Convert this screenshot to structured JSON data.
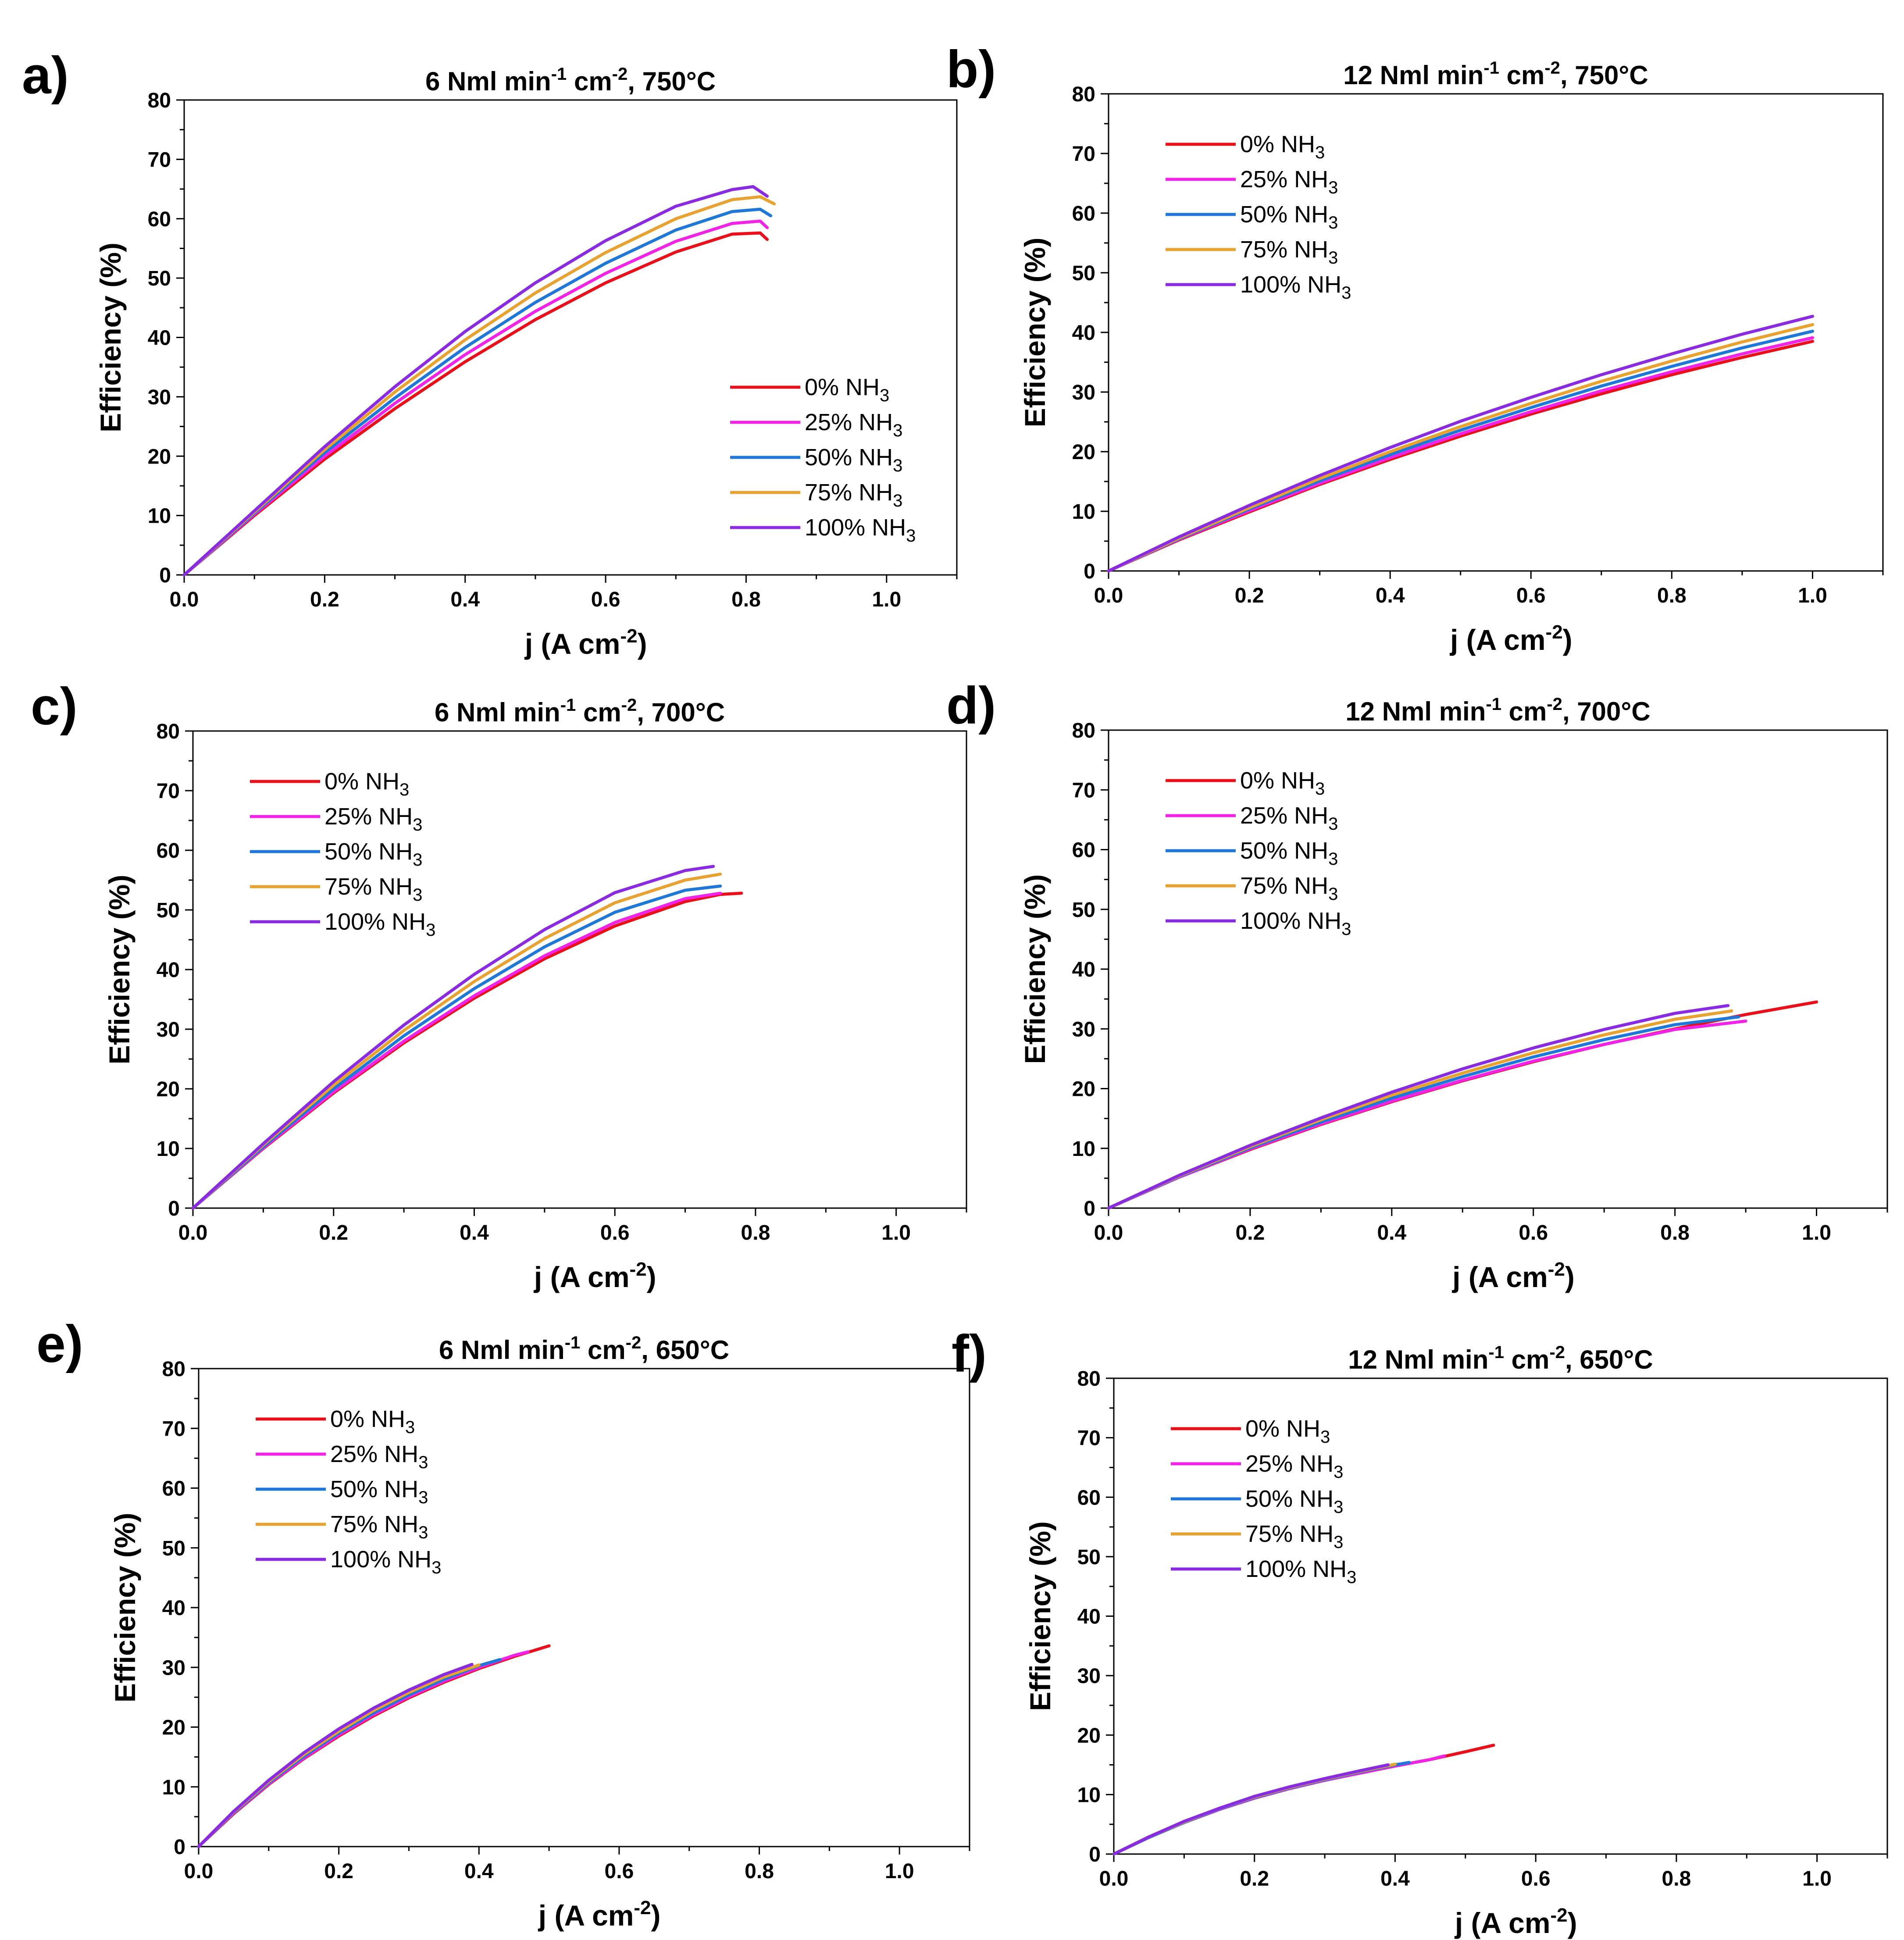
{
  "chart_data": [
    {
      "type": "line",
      "panel": "a)",
      "title": "6 Nml  min",
      "title_sup1": "-1",
      "title_mid": " cm",
      "title_sup2": "-2",
      "title_end": ", 750°C",
      "xlabel": "j (A cm",
      "xlabel_sup": "-2",
      "xlabel_end": ")",
      "ylabel": "Efficiency (%)",
      "xlim": [
        0,
        1.1
      ],
      "ylim": [
        0,
        80
      ],
      "xticks": [
        "0.0",
        "0.2",
        "0.4",
        "0.6",
        "0.8",
        "1.0"
      ],
      "yticks": [
        "0",
        "10",
        "20",
        "30",
        "40",
        "50",
        "60",
        "70",
        "80"
      ],
      "legend_position": "bottom-right",
      "series": [
        {
          "name": "0% NH",
          "sub": "3",
          "color": "#e8111b",
          "x": [
            0,
            0.1,
            0.2,
            0.3,
            0.4,
            0.5,
            0.6,
            0.7,
            0.78,
            0.82,
            0.83
          ],
          "y": [
            0,
            10.0,
            19.5,
            28.0,
            35.9,
            43.0,
            49.2,
            54.4,
            57.4,
            57.6,
            56.5
          ]
        },
        {
          "name": "25% NH",
          "sub": "3",
          "color": "#f023e6",
          "x": [
            0,
            0.1,
            0.2,
            0.3,
            0.4,
            0.5,
            0.6,
            0.7,
            0.78,
            0.82,
            0.83
          ],
          "y": [
            0,
            10.2,
            20.0,
            28.9,
            37.1,
            44.4,
            50.8,
            56.2,
            59.2,
            59.6,
            58.5
          ]
        },
        {
          "name": "50% NH",
          "sub": "3",
          "color": "#1f78d8",
          "x": [
            0,
            0.1,
            0.2,
            0.3,
            0.4,
            0.5,
            0.6,
            0.7,
            0.78,
            0.82,
            0.835
          ],
          "y": [
            0,
            10.4,
            20.6,
            29.8,
            38.3,
            45.9,
            52.5,
            58.1,
            61.2,
            61.6,
            60.5
          ]
        },
        {
          "name": "75% NH",
          "sub": "3",
          "color": "#e8a232",
          "x": [
            0,
            0.1,
            0.2,
            0.3,
            0.4,
            0.5,
            0.6,
            0.7,
            0.78,
            0.82,
            0.84
          ],
          "y": [
            0,
            10.6,
            21.1,
            30.8,
            39.6,
            47.5,
            54.3,
            60.0,
            63.2,
            63.7,
            62.5
          ]
        },
        {
          "name": "100% NH",
          "sub": "3",
          "color": "#8a2be2",
          "x": [
            0,
            0.1,
            0.2,
            0.3,
            0.4,
            0.5,
            0.6,
            0.7,
            0.78,
            0.81,
            0.83
          ],
          "y": [
            0,
            10.8,
            21.6,
            31.7,
            41.0,
            49.2,
            56.3,
            62.1,
            64.9,
            65.4,
            63.8
          ]
        }
      ]
    },
    {
      "type": "line",
      "panel": "b)",
      "title": "12 Nml  min",
      "title_sup1": "-1",
      "title_mid": " cm",
      "title_sup2": "-2",
      "title_end": ", 750°C",
      "xlabel": "j (A cm",
      "xlabel_sup": "-2",
      "xlabel_end": ")",
      "ylabel": "Efficiency (%)",
      "xlim": [
        0,
        1.1
      ],
      "ylim": [
        0,
        80
      ],
      "xticks": [
        "0.0",
        "0.2",
        "0.4",
        "0.6",
        "0.8",
        "1.0"
      ],
      "yticks": [
        "0",
        "10",
        "20",
        "30",
        "40",
        "50",
        "60",
        "70",
        "80"
      ],
      "legend_position": "top-left",
      "series": [
        {
          "name": "0% NH",
          "sub": "3",
          "color": "#e8111b",
          "x": [
            0,
            0.1,
            0.2,
            0.3,
            0.4,
            0.5,
            0.6,
            0.7,
            0.8,
            0.9,
            1.0
          ],
          "y": [
            0,
            5.2,
            9.9,
            14.5,
            18.7,
            22.6,
            26.3,
            29.7,
            32.9,
            35.8,
            38.5
          ]
        },
        {
          "name": "25% NH",
          "sub": "3",
          "color": "#f023e6",
          "x": [
            0,
            0.1,
            0.2,
            0.3,
            0.4,
            0.5,
            0.6,
            0.7,
            0.8,
            0.9,
            1.0
          ],
          "y": [
            0,
            5.3,
            10.1,
            14.7,
            19.0,
            23.0,
            26.7,
            30.2,
            33.4,
            36.4,
            39.1
          ]
        },
        {
          "name": "50% NH",
          "sub": "3",
          "color": "#1f78d8",
          "x": [
            0,
            0.1,
            0.2,
            0.3,
            0.4,
            0.5,
            0.6,
            0.7,
            0.8,
            0.9,
            1.0
          ],
          "y": [
            0,
            5.4,
            10.4,
            15.1,
            19.5,
            23.6,
            27.4,
            31.0,
            34.3,
            37.4,
            40.2
          ]
        },
        {
          "name": "75% NH",
          "sub": "3",
          "color": "#e8a232",
          "x": [
            0,
            0.1,
            0.2,
            0.3,
            0.4,
            0.5,
            0.6,
            0.7,
            0.8,
            0.9,
            1.0
          ],
          "y": [
            0,
            5.5,
            10.6,
            15.5,
            20.0,
            24.2,
            28.1,
            31.8,
            35.2,
            38.4,
            41.3
          ]
        },
        {
          "name": "100% NH",
          "sub": "3",
          "color": "#8a2be2",
          "x": [
            0,
            0.1,
            0.2,
            0.3,
            0.4,
            0.5,
            0.6,
            0.7,
            0.8,
            0.9,
            1.0
          ],
          "y": [
            0,
            5.7,
            11.0,
            16.0,
            20.7,
            25.1,
            29.1,
            32.9,
            36.4,
            39.7,
            42.7
          ]
        }
      ]
    },
    {
      "type": "line",
      "panel": "c)",
      "title": "6 Nml  min",
      "title_sup1": "-1",
      "title_mid": " cm",
      "title_sup2": "-2",
      "title_end": ", 700°C",
      "xlabel": "j (A cm",
      "xlabel_sup": "-2",
      "xlabel_end": ")",
      "ylabel": "Efficiency (%)",
      "xlim": [
        0,
        1.1
      ],
      "ylim": [
        0,
        80
      ],
      "xticks": [
        "0.0",
        "0.2",
        "0.4",
        "0.6",
        "0.8",
        "1.0"
      ],
      "yticks": [
        "0",
        "10",
        "20",
        "30",
        "40",
        "50",
        "60",
        "70",
        "80"
      ],
      "legend_position": "top-left",
      "series": [
        {
          "name": "0% NH",
          "sub": "3",
          "color": "#e8111b",
          "x": [
            0,
            0.1,
            0.2,
            0.3,
            0.4,
            0.5,
            0.6,
            0.7,
            0.75,
            0.78
          ],
          "y": [
            0,
            10.0,
            19.3,
            27.7,
            35.2,
            41.8,
            47.3,
            51.4,
            52.6,
            52.8
          ]
        },
        {
          "name": "25% NH",
          "sub": "3",
          "color": "#f023e6",
          "x": [
            0,
            0.1,
            0.2,
            0.3,
            0.4,
            0.5,
            0.6,
            0.7,
            0.75
          ],
          "y": [
            0,
            10.1,
            19.5,
            28.0,
            35.6,
            42.3,
            47.9,
            51.9,
            52.8
          ]
        },
        {
          "name": "50% NH",
          "sub": "3",
          "color": "#1f78d8",
          "x": [
            0,
            0.1,
            0.2,
            0.3,
            0.4,
            0.5,
            0.6,
            0.7,
            0.75
          ],
          "y": [
            0,
            10.3,
            20.0,
            28.9,
            36.8,
            43.8,
            49.6,
            53.3,
            54.0
          ]
        },
        {
          "name": "75% NH",
          "sub": "3",
          "color": "#e8a232",
          "x": [
            0,
            0.1,
            0.2,
            0.3,
            0.4,
            0.5,
            0.6,
            0.7,
            0.75
          ],
          "y": [
            0,
            10.6,
            20.6,
            29.8,
            38.0,
            45.2,
            51.2,
            55.0,
            56.0
          ]
        },
        {
          "name": "100% NH",
          "sub": "3",
          "color": "#8a2be2",
          "x": [
            0,
            0.1,
            0.2,
            0.3,
            0.4,
            0.5,
            0.6,
            0.7,
            0.74
          ],
          "y": [
            0,
            10.8,
            21.2,
            30.7,
            39.2,
            46.7,
            52.9,
            56.6,
            57.3
          ]
        }
      ]
    },
    {
      "type": "line",
      "panel": "d)",
      "title": "12 Nml  min",
      "title_sup1": "-1",
      "title_mid": " cm",
      "title_sup2": "-2",
      "title_end": ", 700°C",
      "xlabel": "j (A cm",
      "xlabel_sup": "-2",
      "xlabel_end": ")",
      "ylabel": "Efficiency (%)",
      "xlim": [
        0,
        1.1
      ],
      "ylim": [
        0,
        80
      ],
      "xticks": [
        "0.0",
        "0.2",
        "0.4",
        "0.6",
        "0.8",
        "1.0"
      ],
      "yticks": [
        "0",
        "10",
        "20",
        "30",
        "40",
        "50",
        "60",
        "70",
        "80"
      ],
      "legend_position": "top-left",
      "series": [
        {
          "name": "0% NH",
          "sub": "3",
          "color": "#e8111b",
          "x": [
            0,
            0.1,
            0.2,
            0.3,
            0.4,
            0.5,
            0.6,
            0.7,
            0.8,
            0.9,
            1.0
          ],
          "y": [
            0,
            5.2,
            9.8,
            14.0,
            17.8,
            21.3,
            24.5,
            27.4,
            30.0,
            32.4,
            34.5
          ]
        },
        {
          "name": "25% NH",
          "sub": "3",
          "color": "#f023e6",
          "x": [
            0,
            0.1,
            0.2,
            0.3,
            0.4,
            0.5,
            0.6,
            0.7,
            0.8,
            0.9
          ],
          "y": [
            0,
            5.2,
            9.9,
            14.1,
            17.9,
            21.4,
            24.6,
            27.4,
            29.9,
            31.3
          ]
        },
        {
          "name": "50% NH",
          "sub": "3",
          "color": "#1f78d8",
          "x": [
            0,
            0.1,
            0.2,
            0.3,
            0.4,
            0.5,
            0.6,
            0.7,
            0.8,
            0.89
          ],
          "y": [
            0,
            5.3,
            10.1,
            14.4,
            18.4,
            22.0,
            25.3,
            28.2,
            30.7,
            32.0
          ]
        },
        {
          "name": "75% NH",
          "sub": "3",
          "color": "#e8a232",
          "x": [
            0,
            0.1,
            0.2,
            0.3,
            0.4,
            0.5,
            0.6,
            0.7,
            0.8,
            0.88
          ],
          "y": [
            0,
            5.4,
            10.3,
            14.8,
            18.9,
            22.6,
            26.0,
            29.0,
            31.6,
            33.0
          ]
        },
        {
          "name": "100% NH",
          "sub": "3",
          "color": "#8a2be2",
          "x": [
            0,
            0.1,
            0.2,
            0.3,
            0.4,
            0.5,
            0.6,
            0.7,
            0.8,
            0.875
          ],
          "y": [
            0,
            5.5,
            10.5,
            15.1,
            19.4,
            23.3,
            26.8,
            29.9,
            32.6,
            33.9
          ]
        }
      ]
    },
    {
      "type": "line",
      "panel": "e)",
      "title": "6 Nml  min",
      "title_sup1": "-1",
      "title_mid": " cm",
      "title_sup2": "-2",
      "title_end": ", 650°C",
      "xlabel": "j (A cm",
      "xlabel_sup": "-2",
      "xlabel_end": ")",
      "ylabel": "Efficiency (%)",
      "xlim": [
        0,
        1.1
      ],
      "ylim": [
        0,
        80
      ],
      "xticks": [
        "0.0",
        "0.2",
        "0.4",
        "0.6",
        "0.8",
        "1.0"
      ],
      "yticks": [
        "0",
        "10",
        "20",
        "30",
        "40",
        "50",
        "60",
        "70",
        "80"
      ],
      "legend_position": "top-left",
      "series": [
        {
          "name": "0% NH",
          "sub": "3",
          "color": "#e8111b",
          "x": [
            0,
            0.05,
            0.1,
            0.15,
            0.2,
            0.25,
            0.3,
            0.35,
            0.4,
            0.45,
            0.5
          ],
          "y": [
            0,
            5.5,
            10.4,
            14.7,
            18.5,
            21.9,
            24.9,
            27.5,
            29.8,
            31.8,
            33.6
          ]
        },
        {
          "name": "25% NH",
          "sub": "3",
          "color": "#f023e6",
          "x": [
            0,
            0.05,
            0.1,
            0.15,
            0.2,
            0.25,
            0.3,
            0.35,
            0.4,
            0.45,
            0.47
          ],
          "y": [
            0,
            5.6,
            10.5,
            14.8,
            18.7,
            22.1,
            25.1,
            27.7,
            30.0,
            32.0,
            32.6
          ]
        },
        {
          "name": "50% NH",
          "sub": "3",
          "color": "#1f78d8",
          "x": [
            0,
            0.05,
            0.1,
            0.15,
            0.2,
            0.25,
            0.3,
            0.35,
            0.4,
            0.43
          ],
          "y": [
            0,
            5.7,
            10.7,
            15.1,
            19.0,
            22.4,
            25.4,
            28.0,
            30.3,
            31.3
          ]
        },
        {
          "name": "75% NH",
          "sub": "3",
          "color": "#e8a232",
          "x": [
            0,
            0.05,
            0.1,
            0.15,
            0.2,
            0.25,
            0.3,
            0.35,
            0.4
          ],
          "y": [
            0,
            5.8,
            10.9,
            15.4,
            19.3,
            22.8,
            25.8,
            28.4,
            30.4
          ]
        },
        {
          "name": "100% NH",
          "sub": "3",
          "color": "#8a2be2",
          "x": [
            0,
            0.05,
            0.1,
            0.15,
            0.2,
            0.25,
            0.3,
            0.35,
            0.39
          ],
          "y": [
            0,
            5.9,
            11.1,
            15.7,
            19.7,
            23.2,
            26.2,
            28.8,
            30.5
          ]
        }
      ]
    },
    {
      "type": "line",
      "panel": "f)",
      "title": "12 Nml  min",
      "title_sup1": "-1",
      "title_mid": " cm",
      "title_sup2": "-2",
      "title_end": ", 650°C",
      "xlabel": "j (A cm",
      "xlabel_sup": "-2",
      "xlabel_end": ")",
      "ylabel": "Efficiency (%)",
      "xlim": [
        0,
        1.1
      ],
      "ylim": [
        0,
        80
      ],
      "xticks": [
        "0.0",
        "0.2",
        "0.4",
        "0.6",
        "0.8",
        "1.0"
      ],
      "yticks": [
        "0",
        "10",
        "20",
        "30",
        "40",
        "50",
        "60",
        "70",
        "80"
      ],
      "legend_position": "top-left",
      "series": [
        {
          "name": "0% NH",
          "sub": "3",
          "color": "#e8111b",
          "x": [
            0,
            0.05,
            0.1,
            0.15,
            0.2,
            0.25,
            0.3,
            0.35,
            0.4,
            0.45,
            0.5,
            0.54
          ],
          "y": [
            0,
            2.8,
            5.3,
            7.5,
            9.4,
            11.0,
            12.4,
            13.6,
            14.8,
            15.9,
            17.2,
            18.3
          ]
        },
        {
          "name": "25% NH",
          "sub": "3",
          "color": "#f023e6",
          "x": [
            0,
            0.05,
            0.1,
            0.15,
            0.2,
            0.25,
            0.3,
            0.35,
            0.4,
            0.45,
            0.47
          ],
          "y": [
            0,
            2.8,
            5.3,
            7.5,
            9.4,
            11.0,
            12.4,
            13.6,
            14.8,
            15.9,
            16.5
          ]
        },
        {
          "name": "50% NH",
          "sub": "3",
          "color": "#1f78d8",
          "x": [
            0,
            0.05,
            0.1,
            0.15,
            0.2,
            0.25,
            0.3,
            0.35,
            0.4,
            0.42
          ],
          "y": [
            0,
            2.8,
            5.3,
            7.6,
            9.5,
            11.1,
            12.5,
            13.8,
            15.0,
            15.4
          ]
        },
        {
          "name": "75% NH",
          "sub": "3",
          "color": "#e8a232",
          "x": [
            0,
            0.05,
            0.1,
            0.15,
            0.2,
            0.25,
            0.3,
            0.35,
            0.4
          ],
          "y": [
            0,
            2.9,
            5.4,
            7.7,
            9.6,
            11.2,
            12.6,
            13.9,
            15.1
          ]
        },
        {
          "name": "100% NH",
          "sub": "3",
          "color": "#8a2be2",
          "x": [
            0,
            0.05,
            0.1,
            0.15,
            0.2,
            0.25,
            0.3,
            0.35,
            0.39
          ],
          "y": [
            0,
            2.9,
            5.5,
            7.7,
            9.7,
            11.3,
            12.7,
            14.0,
            15.0
          ]
        }
      ]
    }
  ]
}
